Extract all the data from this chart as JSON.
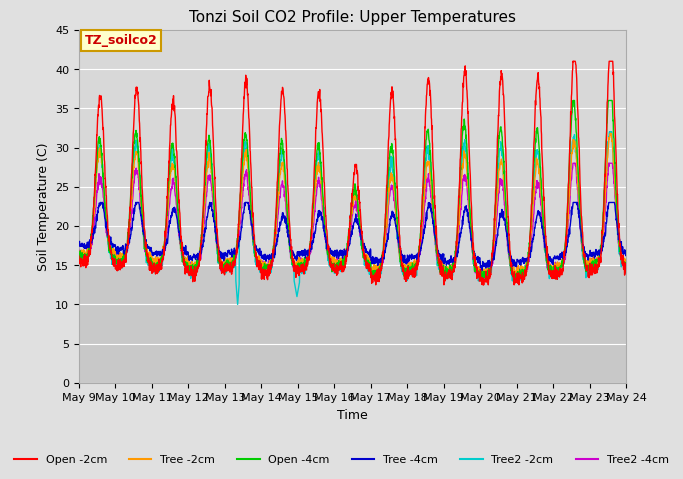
{
  "title": "Tonzi Soil CO2 Profile: Upper Temperatures",
  "xlabel": "Time",
  "ylabel": "Soil Temperature (C)",
  "ylim": [
    0,
    45
  ],
  "yticks": [
    0,
    5,
    10,
    15,
    20,
    25,
    30,
    35,
    40,
    45
  ],
  "xtick_labels": [
    "May 9",
    "May 10",
    "May 11",
    "May 12",
    "May 13",
    "May 14",
    "May 15",
    "May 16",
    "May 17",
    "May 18",
    "May 19",
    "May 20",
    "May 21",
    "May 22",
    "May 23",
    "May 24"
  ],
  "series_colors": [
    "#ff0000",
    "#ff9900",
    "#00cc00",
    "#0000cc",
    "#00cccc",
    "#cc00cc"
  ],
  "series_labels": [
    "Open -2cm",
    "Tree -2cm",
    "Open -4cm",
    "Tree -4cm",
    "Tree2 -2cm",
    "Tree2 -4cm"
  ],
  "watermark_text": "TZ_soilco2",
  "watermark_color": "#cc0000",
  "watermark_bg": "#ffffcc",
  "watermark_border": "#cc9900",
  "background_color": "#e0e0e0",
  "plot_bg_upper_color": "#d8d8d8",
  "plot_bg_lower_color": "#c8c8c8",
  "grid_color": "#ffffff",
  "title_fontsize": 11,
  "axis_label_fontsize": 9,
  "tick_fontsize": 8,
  "legend_fontsize": 8,
  "n_days": 15,
  "pts_per_day": 144,
  "night_temp_base": 15.5,
  "warming_trend": 2.5
}
